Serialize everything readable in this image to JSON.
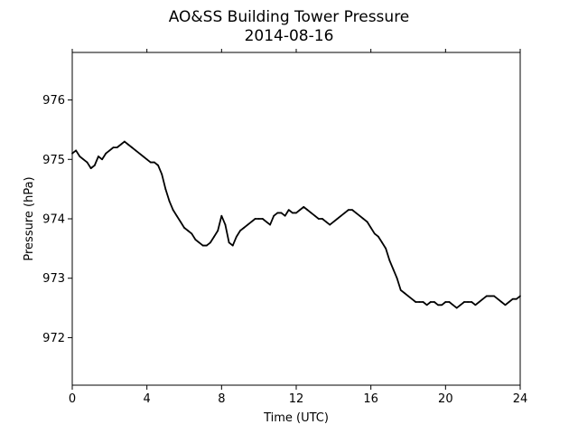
{
  "chart_data": {
    "type": "line",
    "title": "AO&SS Building Tower Pressure",
    "subtitle": "2014-08-16",
    "xlabel": "Time (UTC)",
    "ylabel": "Pressure (hPa)",
    "xlim": [
      0,
      24
    ],
    "ylim": [
      971.2,
      976.8
    ],
    "xticks": [
      0,
      4,
      8,
      12,
      16,
      20,
      24
    ],
    "yticks": [
      972,
      973,
      974,
      975,
      976
    ],
    "grid": false,
    "line_color": "#000000",
    "series": [
      {
        "x": [
          0.0,
          0.2,
          0.4,
          0.6,
          0.8,
          1.0,
          1.2,
          1.4,
          1.6,
          1.8,
          2.0,
          2.2,
          2.4,
          2.6,
          2.8,
          3.0,
          3.2,
          3.4,
          3.6,
          3.8,
          4.0,
          4.2,
          4.4,
          4.6,
          4.8,
          5.0,
          5.2,
          5.4,
          5.6,
          5.8,
          6.0,
          6.2,
          6.4,
          6.6,
          6.8,
          7.0,
          7.2,
          7.4,
          7.6,
          7.8,
          8.0,
          8.2,
          8.4,
          8.6,
          8.8,
          9.0,
          9.2,
          9.4,
          9.6,
          9.8,
          10.0,
          10.2,
          10.4,
          10.6,
          10.8,
          11.0,
          11.2,
          11.4,
          11.6,
          11.8,
          12.0,
          12.2,
          12.4,
          12.6,
          12.8,
          13.0,
          13.2,
          13.4,
          13.6,
          13.8,
          14.0,
          14.2,
          14.4,
          14.6,
          14.8,
          15.0,
          15.2,
          15.4,
          15.6,
          15.8,
          16.0,
          16.2,
          16.4,
          16.6,
          16.8,
          17.0,
          17.2,
          17.4,
          17.6,
          17.8,
          18.0,
          18.2,
          18.4,
          18.6,
          18.8,
          19.0,
          19.2,
          19.4,
          19.6,
          19.8,
          20.0,
          20.2,
          20.4,
          20.6,
          20.8,
          21.0,
          21.2,
          21.4,
          21.6,
          21.8,
          22.0,
          22.2,
          22.4,
          22.6,
          22.8,
          23.0,
          23.2,
          23.4,
          23.6,
          23.8,
          24.0
        ],
        "values": [
          975.1,
          975.15,
          975.05,
          975.0,
          974.95,
          974.85,
          974.9,
          975.05,
          975.0,
          975.1,
          975.15,
          975.2,
          975.2,
          975.25,
          975.3,
          975.25,
          975.2,
          975.15,
          975.1,
          975.05,
          975.0,
          974.95,
          974.95,
          974.9,
          974.75,
          974.5,
          974.3,
          974.15,
          974.05,
          973.95,
          973.85,
          973.8,
          973.75,
          973.65,
          973.6,
          973.55,
          973.55,
          973.6,
          973.7,
          973.8,
          974.05,
          973.9,
          973.6,
          973.55,
          973.7,
          973.8,
          973.85,
          973.9,
          973.95,
          974.0,
          974.0,
          974.0,
          973.95,
          973.9,
          974.05,
          974.1,
          974.1,
          974.05,
          974.15,
          974.1,
          974.1,
          974.15,
          974.2,
          974.15,
          974.1,
          974.05,
          974.0,
          974.0,
          973.95,
          973.9,
          973.95,
          974.0,
          974.05,
          974.1,
          974.15,
          974.15,
          974.1,
          974.05,
          974.0,
          973.95,
          973.85,
          973.75,
          973.7,
          973.6,
          973.5,
          973.3,
          973.15,
          973.0,
          972.8,
          972.75,
          972.7,
          972.65,
          972.6,
          972.6,
          972.6,
          972.55,
          972.6,
          972.6,
          972.55,
          972.55,
          972.6,
          972.6,
          972.55,
          972.5,
          972.55,
          972.6,
          972.6,
          972.6,
          972.55,
          972.6,
          972.65,
          972.7,
          972.7,
          972.7,
          972.65,
          972.6,
          972.55,
          972.6,
          972.65,
          972.65,
          972.7
        ]
      }
    ]
  }
}
